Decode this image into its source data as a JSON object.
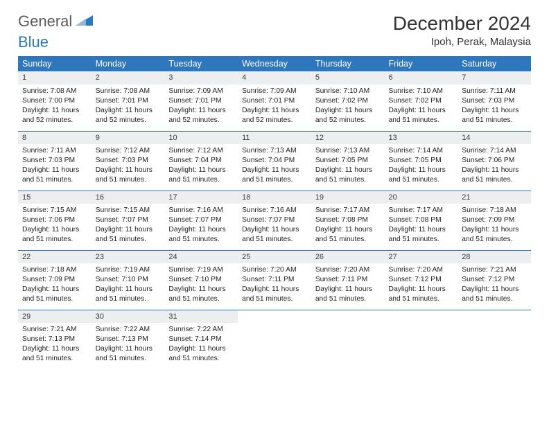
{
  "logo": {
    "text1": "General",
    "text2": "Blue"
  },
  "header": {
    "title": "December 2024",
    "location": "Ipoh, Perak, Malaysia"
  },
  "dow": [
    "Sunday",
    "Monday",
    "Tuesday",
    "Wednesday",
    "Thursday",
    "Friday",
    "Saturday"
  ],
  "colors": {
    "header_bg": "#2e77bd",
    "header_text": "#ffffff",
    "daynum_bg": "#eceeef",
    "border": "#2e77bd",
    "logo_gray": "#5a5a5a",
    "logo_blue": "#2e77bd"
  },
  "weeks": [
    [
      {
        "n": "1",
        "sr": "7:08 AM",
        "ss": "7:00 PM",
        "dl": "11 hours and 52 minutes."
      },
      {
        "n": "2",
        "sr": "7:08 AM",
        "ss": "7:01 PM",
        "dl": "11 hours and 52 minutes."
      },
      {
        "n": "3",
        "sr": "7:09 AM",
        "ss": "7:01 PM",
        "dl": "11 hours and 52 minutes."
      },
      {
        "n": "4",
        "sr": "7:09 AM",
        "ss": "7:01 PM",
        "dl": "11 hours and 52 minutes."
      },
      {
        "n": "5",
        "sr": "7:10 AM",
        "ss": "7:02 PM",
        "dl": "11 hours and 52 minutes."
      },
      {
        "n": "6",
        "sr": "7:10 AM",
        "ss": "7:02 PM",
        "dl": "11 hours and 51 minutes."
      },
      {
        "n": "7",
        "sr": "7:11 AM",
        "ss": "7:03 PM",
        "dl": "11 hours and 51 minutes."
      }
    ],
    [
      {
        "n": "8",
        "sr": "7:11 AM",
        "ss": "7:03 PM",
        "dl": "11 hours and 51 minutes."
      },
      {
        "n": "9",
        "sr": "7:12 AM",
        "ss": "7:03 PM",
        "dl": "11 hours and 51 minutes."
      },
      {
        "n": "10",
        "sr": "7:12 AM",
        "ss": "7:04 PM",
        "dl": "11 hours and 51 minutes."
      },
      {
        "n": "11",
        "sr": "7:13 AM",
        "ss": "7:04 PM",
        "dl": "11 hours and 51 minutes."
      },
      {
        "n": "12",
        "sr": "7:13 AM",
        "ss": "7:05 PM",
        "dl": "11 hours and 51 minutes."
      },
      {
        "n": "13",
        "sr": "7:14 AM",
        "ss": "7:05 PM",
        "dl": "11 hours and 51 minutes."
      },
      {
        "n": "14",
        "sr": "7:14 AM",
        "ss": "7:06 PM",
        "dl": "11 hours and 51 minutes."
      }
    ],
    [
      {
        "n": "15",
        "sr": "7:15 AM",
        "ss": "7:06 PM",
        "dl": "11 hours and 51 minutes."
      },
      {
        "n": "16",
        "sr": "7:15 AM",
        "ss": "7:07 PM",
        "dl": "11 hours and 51 minutes."
      },
      {
        "n": "17",
        "sr": "7:16 AM",
        "ss": "7:07 PM",
        "dl": "11 hours and 51 minutes."
      },
      {
        "n": "18",
        "sr": "7:16 AM",
        "ss": "7:07 PM",
        "dl": "11 hours and 51 minutes."
      },
      {
        "n": "19",
        "sr": "7:17 AM",
        "ss": "7:08 PM",
        "dl": "11 hours and 51 minutes."
      },
      {
        "n": "20",
        "sr": "7:17 AM",
        "ss": "7:08 PM",
        "dl": "11 hours and 51 minutes."
      },
      {
        "n": "21",
        "sr": "7:18 AM",
        "ss": "7:09 PM",
        "dl": "11 hours and 51 minutes."
      }
    ],
    [
      {
        "n": "22",
        "sr": "7:18 AM",
        "ss": "7:09 PM",
        "dl": "11 hours and 51 minutes."
      },
      {
        "n": "23",
        "sr": "7:19 AM",
        "ss": "7:10 PM",
        "dl": "11 hours and 51 minutes."
      },
      {
        "n": "24",
        "sr": "7:19 AM",
        "ss": "7:10 PM",
        "dl": "11 hours and 51 minutes."
      },
      {
        "n": "25",
        "sr": "7:20 AM",
        "ss": "7:11 PM",
        "dl": "11 hours and 51 minutes."
      },
      {
        "n": "26",
        "sr": "7:20 AM",
        "ss": "7:11 PM",
        "dl": "11 hours and 51 minutes."
      },
      {
        "n": "27",
        "sr": "7:20 AM",
        "ss": "7:12 PM",
        "dl": "11 hours and 51 minutes."
      },
      {
        "n": "28",
        "sr": "7:21 AM",
        "ss": "7:12 PM",
        "dl": "11 hours and 51 minutes."
      }
    ],
    [
      {
        "n": "29",
        "sr": "7:21 AM",
        "ss": "7:13 PM",
        "dl": "11 hours and 51 minutes."
      },
      {
        "n": "30",
        "sr": "7:22 AM",
        "ss": "7:13 PM",
        "dl": "11 hours and 51 minutes."
      },
      {
        "n": "31",
        "sr": "7:22 AM",
        "ss": "7:14 PM",
        "dl": "11 hours and 51 minutes."
      },
      null,
      null,
      null,
      null
    ]
  ],
  "labels": {
    "sunrise": "Sunrise:",
    "sunset": "Sunset:",
    "daylight": "Daylight:"
  }
}
